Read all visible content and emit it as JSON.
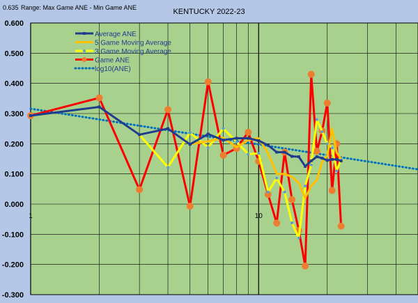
{
  "header": {
    "range_value": "0.635",
    "range_label": "Range: Max Game ANE - Min Game ANE"
  },
  "chart_data": {
    "type": "line",
    "title": "KENTUCKY 2022-23",
    "x_scale": "log10",
    "xlim": [
      1,
      50
    ],
    "ylim": [
      -0.3,
      0.6
    ],
    "yticks": [
      "0.600",
      "0.500",
      "0.400",
      "0.300",
      "0.200",
      "0.100",
      "0.000",
      "-0.100",
      "-0.200",
      "-0.300"
    ],
    "xtick_labels": [
      {
        "x": 1,
        "label": "1"
      },
      {
        "x": 10,
        "label": "10"
      }
    ],
    "grid": true,
    "legend_position": "top-left",
    "series": [
      {
        "name": "Average ANE",
        "color": "#1f3d8c",
        "style": "solid",
        "x": [
          1,
          2,
          3,
          4,
          5,
          6,
          7,
          8,
          9,
          10,
          11,
          12,
          13,
          14,
          15,
          16,
          17,
          18,
          19,
          20,
          21,
          22,
          23
        ],
        "values": [
          0.293,
          0.322,
          0.23,
          0.25,
          0.198,
          0.232,
          0.212,
          0.218,
          0.218,
          0.21,
          0.195,
          0.172,
          0.172,
          0.158,
          0.157,
          0.125,
          0.143,
          0.157,
          0.152,
          0.145,
          0.148,
          0.148,
          0.143
        ]
      },
      {
        "name": "5 Game Moving Average",
        "color": "#ffc000",
        "style": "solid",
        "x": [
          5,
          6,
          7,
          8,
          9,
          10,
          11,
          12,
          13,
          14,
          15,
          16,
          17,
          18,
          19,
          20,
          21,
          22,
          23
        ],
        "values": [
          0.198,
          0.208,
          0.22,
          0.188,
          0.212,
          0.218,
          0.168,
          0.1,
          0.1,
          0.09,
          0.07,
          0.02,
          0.06,
          0.08,
          0.14,
          0.16,
          0.25,
          0.17,
          0.15
        ]
      },
      {
        "name": "3 Game Moving Average",
        "color": "#ffff00",
        "style": "solid",
        "x": [
          3,
          4,
          5,
          6,
          7,
          8,
          9,
          10,
          11,
          12,
          13,
          14,
          15,
          16,
          17,
          18,
          19,
          20,
          21,
          22,
          23
        ],
        "values": [
          0.23,
          0.122,
          0.236,
          0.188,
          0.25,
          0.206,
          0.166,
          0.168,
          0.04,
          0.086,
          0.04,
          -0.062,
          -0.112,
          0.06,
          0.13,
          0.28,
          0.24,
          0.2,
          0.186,
          0.11,
          0.15
        ]
      },
      {
        "name": "Game ANE",
        "color": "#ff0000",
        "style": "solid",
        "markers": true,
        "marker_color": "#ed7d31",
        "x": [
          1,
          2,
          3,
          4,
          5,
          6,
          7,
          8,
          9,
          10,
          11,
          12,
          13,
          14,
          15,
          16,
          17,
          18,
          19,
          20,
          21,
          22,
          23
        ],
        "values": [
          0.293,
          0.352,
          0.048,
          0.313,
          -0.007,
          0.405,
          0.162,
          0.185,
          0.238,
          0.142,
          0.032,
          -0.063,
          0.172,
          0.015,
          -0.087,
          -0.205,
          0.43,
          0.175,
          0.243,
          0.335,
          0.045,
          0.2,
          -0.073
        ]
      },
      {
        "name": "log10(ANE)",
        "color": "#0070c0",
        "style": "dotted",
        "trend": {
          "start_x": 1,
          "start_y": 0.316,
          "end_x": 50,
          "end_y": 0.115
        }
      }
    ]
  }
}
